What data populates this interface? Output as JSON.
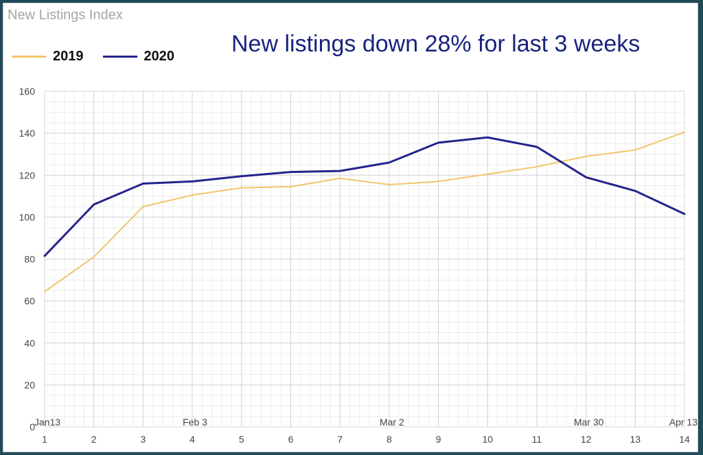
{
  "chart_data": {
    "type": "line",
    "title": "New Listings Index",
    "headline": "New listings down 28% for last 3 weeks",
    "x": [
      1,
      2,
      3,
      4,
      5,
      6,
      7,
      8,
      9,
      10,
      11,
      12,
      13,
      14
    ],
    "date_labels": [
      {
        "x": 1,
        "label": "Jan13"
      },
      {
        "x": 4,
        "label": "Feb 3"
      },
      {
        "x": 8,
        "label": "Mar 2"
      },
      {
        "x": 12,
        "label": "Mar 30"
      },
      {
        "x": 14,
        "label": "Apr 13"
      }
    ],
    "ylim": [
      0,
      160
    ],
    "yticks": [
      0,
      20,
      40,
      60,
      80,
      100,
      120,
      140,
      160
    ],
    "grid": true,
    "legend_position": "top-left",
    "series": [
      {
        "name": "2019",
        "color": "#f2c46d",
        "values": [
          64.5,
          81,
          105,
          110.5,
          114,
          114.5,
          118.5,
          115.5,
          117,
          120.5,
          124,
          129,
          132,
          140.5
        ]
      },
      {
        "name": "2020",
        "color": "#23238c",
        "values": [
          81.5,
          106,
          116,
          117,
          119.5,
          121.5,
          122,
          126,
          135.5,
          138,
          133.5,
          119,
          112.5,
          101.5
        ]
      }
    ]
  }
}
